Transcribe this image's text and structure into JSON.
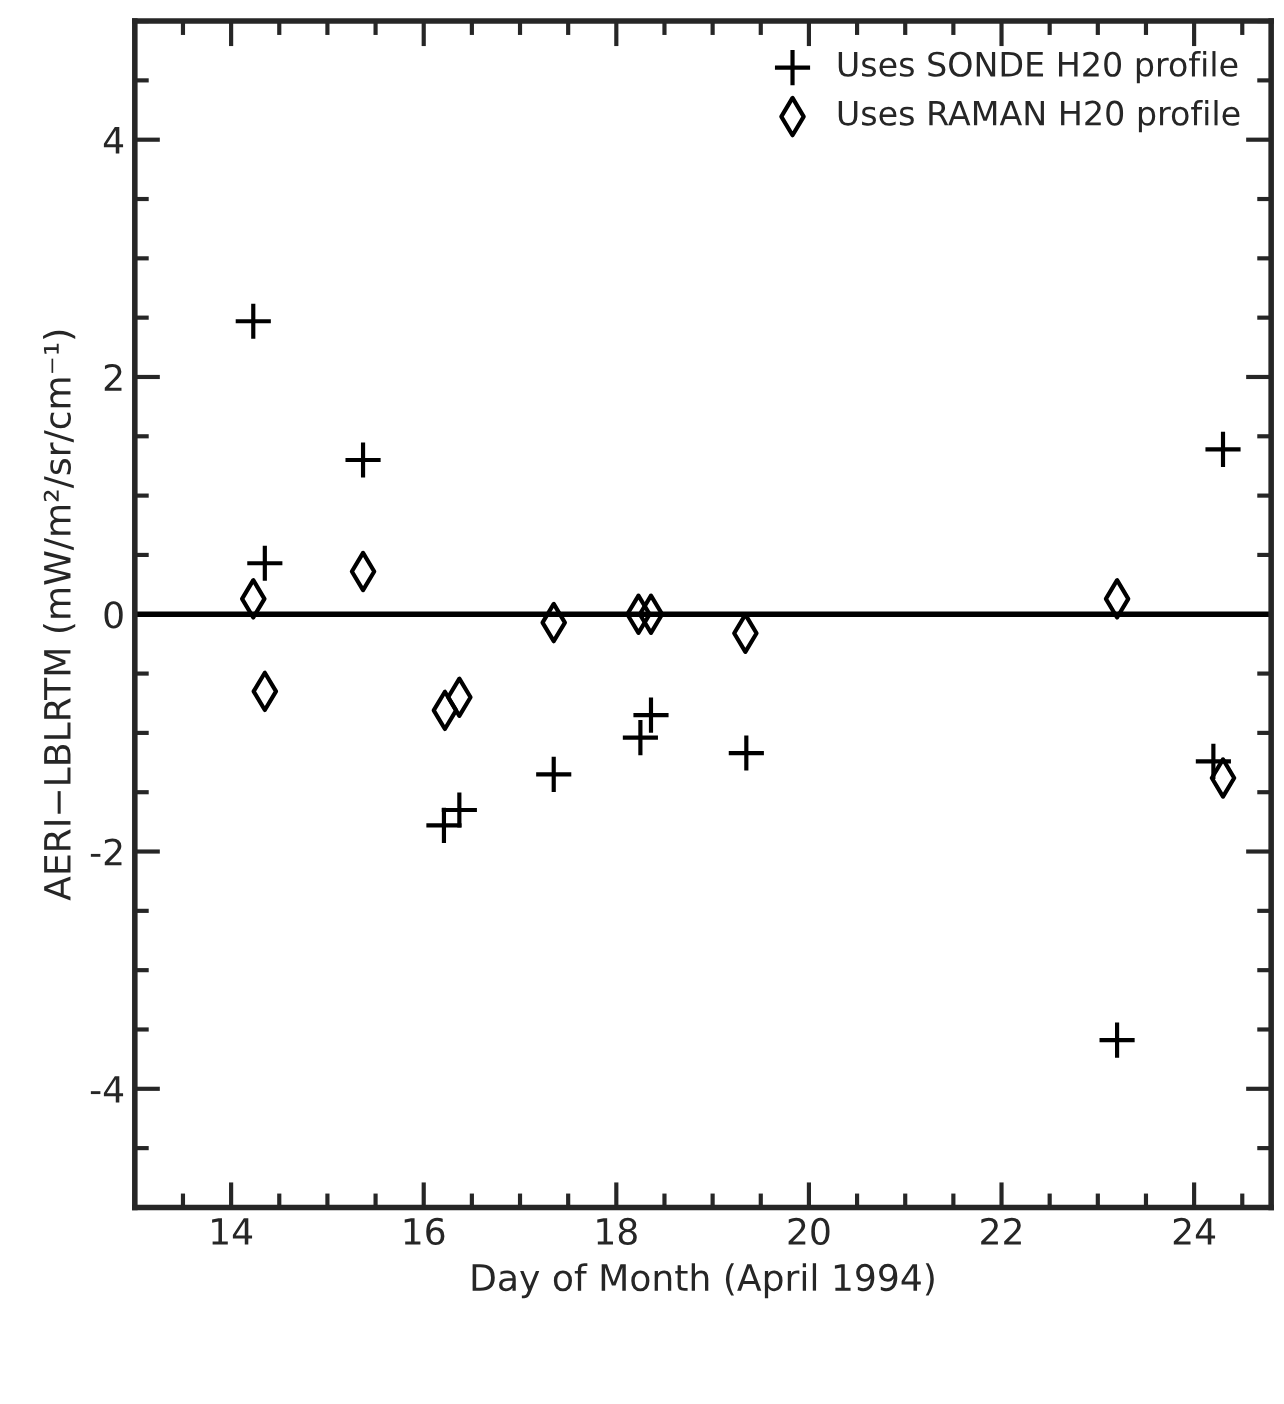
{
  "chart_data": {
    "type": "scatter",
    "xlabel": "Day of Month (April 1994)",
    "ylabel": "AERI−LBLRTM (mW/m²/sr/cm⁻¹)",
    "xlim": [
      13,
      24.8
    ],
    "xticks": [
      14,
      16,
      18,
      20,
      22,
      24
    ],
    "ylim": [
      -5,
      5
    ],
    "yticks": [
      -4,
      -2,
      0,
      2,
      4
    ],
    "legend": "top right",
    "grid": false,
    "ref_lines": [
      {
        "axis": "y",
        "value": 0,
        "color": "#000000",
        "line_style": "solid"
      }
    ],
    "series": [
      {
        "name": "Uses SONDE H20 profile",
        "color": "#000000",
        "marker": "cross",
        "x": [
          14.23,
          14.35,
          15.37,
          16.21,
          16.37,
          17.35,
          18.25,
          18.36,
          19.35,
          23.2,
          24.2,
          24.3
        ],
        "values": [
          2.47,
          0.43,
          1.3,
          -1.78,
          -1.65,
          -1.35,
          -1.04,
          -0.85,
          -1.17,
          -3.59,
          -1.24,
          1.39
        ]
      },
      {
        "name": "Uses RAMAN H20 profile",
        "color": "#000000",
        "marker": "diamond",
        "x": [
          14.23,
          14.35,
          15.37,
          16.22,
          16.37,
          17.35,
          18.23,
          18.36,
          19.34,
          23.2,
          24.3
        ],
        "values": [
          0.13,
          -0.65,
          0.36,
          -0.81,
          -0.7,
          -0.07,
          0.0,
          0.0,
          -0.16,
          0.13,
          -1.38
        ]
      }
    ]
  }
}
